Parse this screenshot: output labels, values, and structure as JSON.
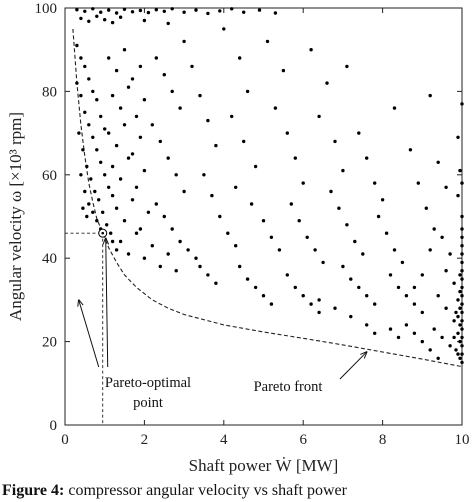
{
  "chart_data": {
    "type": "scatter",
    "title": "",
    "xlabel": "Shaft power Ẇ [MW]",
    "ylabel": "Angular velocity ω [×10³ rpm]",
    "xlim": [
      0,
      10
    ],
    "ylim": [
      0,
      100
    ],
    "xticks": [
      "0",
      "2",
      "4",
      "6",
      "8",
      "10"
    ],
    "yticks": [
      "0",
      "20",
      "40",
      "60",
      "80",
      "100"
    ],
    "grid": false,
    "series": [
      {
        "name": "",
        "style": "black dots",
        "points": [
          [
            0.3,
            99.6
          ],
          [
            0.5,
            99.2
          ],
          [
            0.7,
            99.8
          ],
          [
            0.9,
            99.0
          ],
          [
            1.1,
            99.5
          ],
          [
            1.3,
            98.8
          ],
          [
            1.5,
            99.7
          ],
          [
            1.7,
            99.1
          ],
          [
            1.9,
            99.4
          ],
          [
            2.1,
            98.9
          ],
          [
            2.3,
            99.6
          ],
          [
            2.5,
            99.2
          ],
          [
            2.7,
            99.8
          ],
          [
            3.0,
            99.0
          ],
          [
            3.3,
            99.5
          ],
          [
            3.6,
            98.7
          ],
          [
            3.9,
            99.3
          ],
          [
            4.2,
            99.8
          ],
          [
            4.5,
            99.0
          ],
          [
            4.9,
            99.5
          ],
          [
            5.3,
            98.8
          ],
          [
            0.4,
            97.5
          ],
          [
            0.6,
            96.8
          ],
          [
            0.8,
            98.0
          ],
          [
            1.0,
            97.2
          ],
          [
            1.2,
            96.5
          ],
          [
            1.4,
            97.8
          ],
          [
            2.0,
            97.0
          ],
          [
            2.6,
            96.3
          ],
          [
            0.3,
            91
          ],
          [
            0.4,
            88
          ],
          [
            0.5,
            86
          ],
          [
            0.6,
            83
          ],
          [
            0.7,
            80
          ],
          [
            0.8,
            78
          ],
          [
            0.9,
            74
          ],
          [
            1.0,
            71
          ],
          [
            0.3,
            82
          ],
          [
            0.4,
            79
          ],
          [
            0.5,
            75
          ],
          [
            0.6,
            72
          ],
          [
            0.7,
            69
          ],
          [
            0.8,
            66
          ],
          [
            0.9,
            63
          ],
          [
            1.0,
            60
          ],
          [
            1.1,
            57
          ],
          [
            1.2,
            55
          ],
          [
            0.35,
            70
          ],
          [
            0.45,
            66
          ],
          [
            0.55,
            62
          ],
          [
            0.65,
            59
          ],
          [
            0.75,
            56
          ],
          [
            0.85,
            54
          ],
          [
            0.95,
            51
          ],
          [
            1.05,
            48
          ],
          [
            1.15,
            46
          ],
          [
            0.4,
            60
          ],
          [
            0.5,
            56
          ],
          [
            0.6,
            53
          ],
          [
            0.7,
            51
          ],
          [
            0.8,
            49
          ],
          [
            0.9,
            47
          ],
          [
            1.2,
            44
          ],
          [
            1.3,
            42
          ],
          [
            0.45,
            52
          ],
          [
            0.55,
            50
          ],
          [
            1.1,
            88
          ],
          [
            1.3,
            85
          ],
          [
            1.5,
            90
          ],
          [
            1.7,
            83
          ],
          [
            1.9,
            86
          ],
          [
            1.2,
            79
          ],
          [
            1.4,
            76
          ],
          [
            1.6,
            81
          ],
          [
            1.8,
            74
          ],
          [
            2.0,
            78
          ],
          [
            1.1,
            70
          ],
          [
            1.3,
            67
          ],
          [
            1.5,
            72
          ],
          [
            1.7,
            65
          ],
          [
            1.9,
            69
          ],
          [
            1.2,
            62
          ],
          [
            1.4,
            59
          ],
          [
            1.6,
            64
          ],
          [
            1.8,
            57
          ],
          [
            2.0,
            61
          ],
          [
            1.3,
            52
          ],
          [
            1.5,
            49
          ],
          [
            1.7,
            54
          ],
          [
            1.9,
            47
          ],
          [
            2.1,
            51
          ],
          [
            1.4,
            44
          ],
          [
            1.6,
            41
          ],
          [
            1.8,
            46
          ],
          [
            2.0,
            40
          ],
          [
            2.2,
            43
          ],
          [
            2.4,
            38
          ],
          [
            2.6,
            41
          ],
          [
            2.8,
            37
          ],
          [
            2.3,
            88
          ],
          [
            2.5,
            84
          ],
          [
            2.7,
            80
          ],
          [
            2.9,
            76
          ],
          [
            2.2,
            72
          ],
          [
            2.4,
            68
          ],
          [
            2.6,
            64
          ],
          [
            2.8,
            60
          ],
          [
            3.0,
            56
          ],
          [
            2.3,
            53
          ],
          [
            2.5,
            50
          ],
          [
            2.7,
            47
          ],
          [
            2.9,
            44
          ],
          [
            3.1,
            42
          ],
          [
            3.3,
            40
          ],
          [
            3.0,
            92
          ],
          [
            3.2,
            86
          ],
          [
            3.4,
            79
          ],
          [
            3.6,
            73
          ],
          [
            3.8,
            67
          ],
          [
            3.5,
            60
          ],
          [
            3.7,
            55
          ],
          [
            3.9,
            50
          ],
          [
            4.1,
            46
          ],
          [
            4.3,
            43
          ],
          [
            3.4,
            38
          ],
          [
            3.6,
            36
          ],
          [
            3.8,
            34
          ],
          [
            4.0,
            95
          ],
          [
            4.4,
            88
          ],
          [
            4.6,
            80
          ],
          [
            4.2,
            74
          ],
          [
            4.5,
            68
          ],
          [
            4.8,
            62
          ],
          [
            4.3,
            57
          ],
          [
            4.7,
            53
          ],
          [
            5.0,
            49
          ],
          [
            5.2,
            45
          ],
          [
            5.4,
            42
          ],
          [
            4.4,
            38
          ],
          [
            4.6,
            35
          ],
          [
            4.8,
            33
          ],
          [
            5.0,
            31
          ],
          [
            5.2,
            29
          ],
          [
            5.1,
            92
          ],
          [
            5.5,
            85
          ],
          [
            5.3,
            76
          ],
          [
            5.6,
            70
          ],
          [
            5.8,
            64
          ],
          [
            6.0,
            58
          ],
          [
            5.7,
            53
          ],
          [
            5.9,
            49
          ],
          [
            6.1,
            45
          ],
          [
            6.3,
            42
          ],
          [
            6.5,
            39
          ],
          [
            5.6,
            36
          ],
          [
            5.8,
            33
          ],
          [
            6.0,
            31
          ],
          [
            6.2,
            29
          ],
          [
            6.4,
            27
          ],
          [
            6.2,
            90
          ],
          [
            6.6,
            82
          ],
          [
            6.4,
            74
          ],
          [
            6.8,
            68
          ],
          [
            7.0,
            61
          ],
          [
            6.7,
            56
          ],
          [
            6.9,
            52
          ],
          [
            7.1,
            48
          ],
          [
            7.3,
            44
          ],
          [
            7.5,
            41
          ],
          [
            7.0,
            38
          ],
          [
            7.2,
            35
          ],
          [
            7.4,
            33
          ],
          [
            7.6,
            31
          ],
          [
            7.8,
            29
          ],
          [
            7.1,
            86
          ],
          [
            7.4,
            70
          ],
          [
            7.6,
            64
          ],
          [
            7.8,
            58
          ],
          [
            8.0,
            54
          ],
          [
            7.9,
            50
          ],
          [
            8.1,
            46
          ],
          [
            8.3,
            42
          ],
          [
            8.5,
            39
          ],
          [
            8.2,
            36
          ],
          [
            8.4,
            33
          ],
          [
            8.6,
            31
          ],
          [
            8.8,
            29
          ],
          [
            9.0,
            27
          ],
          [
            8.3,
            76
          ],
          [
            8.7,
            66
          ],
          [
            8.9,
            58
          ],
          [
            9.1,
            52
          ],
          [
            9.3,
            47
          ],
          [
            9.2,
            79
          ],
          [
            9.4,
            63
          ],
          [
            9.6,
            57
          ],
          [
            9.5,
            45
          ],
          [
            9.7,
            41
          ],
          [
            9.6,
            37
          ],
          [
            9.8,
            34
          ],
          [
            9.4,
            31
          ],
          [
            9.6,
            28
          ],
          [
            9.8,
            25
          ],
          [
            9.3,
            23
          ],
          [
            9.5,
            21
          ],
          [
            9.7,
            19
          ],
          [
            9.9,
            17
          ],
          [
            9.2,
            42
          ],
          [
            9.0,
            36
          ],
          [
            8.8,
            33
          ],
          [
            8.6,
            24
          ],
          [
            8.8,
            22
          ],
          [
            9.0,
            20
          ],
          [
            9.2,
            18
          ],
          [
            9.4,
            16
          ],
          [
            8.2,
            23
          ],
          [
            8.4,
            21
          ],
          [
            7.6,
            24
          ],
          [
            7.8,
            22
          ],
          [
            7.2,
            26
          ],
          [
            6.8,
            28
          ],
          [
            6.4,
            30
          ],
          [
            10.0,
            15
          ],
          [
            10.0,
            17
          ],
          [
            10.0,
            19
          ],
          [
            10.0,
            21
          ],
          [
            10.0,
            23
          ],
          [
            10.0,
            25
          ],
          [
            10.0,
            27
          ],
          [
            10.0,
            29
          ],
          [
            10.0,
            31
          ],
          [
            10.0,
            33
          ],
          [
            10.0,
            35
          ],
          [
            10.0,
            37
          ],
          [
            10.0,
            39
          ],
          [
            10.0,
            41
          ],
          [
            10.0,
            43
          ],
          [
            10.0,
            45
          ],
          [
            10.0,
            47
          ],
          [
            10.0,
            50
          ],
          [
            9.95,
            16
          ],
          [
            9.95,
            20
          ],
          [
            9.95,
            24
          ],
          [
            9.95,
            28
          ],
          [
            9.95,
            32
          ],
          [
            9.95,
            36
          ],
          [
            9.9,
            22
          ],
          [
            9.9,
            26
          ],
          [
            9.9,
            30
          ],
          [
            9.85,
            18
          ],
          [
            9.85,
            27
          ],
          [
            9.8,
            21
          ],
          [
            9.9,
            55
          ],
          [
            10.0,
            58
          ],
          [
            9.95,
            61
          ],
          [
            9.9,
            69
          ],
          [
            10.0,
            77
          ]
        ]
      },
      {
        "name": "Pareto front",
        "style": "dashed line",
        "points": [
          [
            0.2,
            95
          ],
          [
            0.3,
            82
          ],
          [
            0.4,
            72
          ],
          [
            0.5,
            64.5
          ],
          [
            0.6,
            58
          ],
          [
            0.7,
            53.5
          ],
          [
            0.8,
            49.5
          ],
          [
            0.95,
            46
          ],
          [
            1.1,
            42.5
          ],
          [
            1.3,
            39
          ],
          [
            1.5,
            36
          ],
          [
            1.8,
            33
          ],
          [
            2.2,
            30
          ],
          [
            2.6,
            28
          ],
          [
            3,
            26.5
          ],
          [
            4,
            24
          ],
          [
            5,
            22.3
          ],
          [
            6,
            20.8
          ],
          [
            7,
            19.2
          ],
          [
            8,
            17.5
          ],
          [
            9,
            15.8
          ],
          [
            10,
            14
          ]
        ]
      }
    ],
    "highlight": {
      "x": 0.95,
      "y": 46
    },
    "annotations": [
      {
        "label_lines": [
          "Pareto-optimal",
          "point"
        ]
      },
      {
        "label_lines": [
          "Pareto front"
        ]
      }
    ]
  },
  "caption": {
    "label": "Figure 4:",
    "text": " compressor angular velocity vs shaft power"
  }
}
